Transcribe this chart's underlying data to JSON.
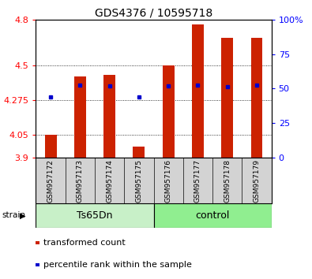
{
  "title": "GDS4376 / 10595718",
  "samples": [
    "GSM957172",
    "GSM957173",
    "GSM957174",
    "GSM957175",
    "GSM957176",
    "GSM957177",
    "GSM957178",
    "GSM957179"
  ],
  "red_values": [
    4.05,
    4.43,
    4.44,
    3.97,
    4.5,
    4.77,
    4.68,
    4.68
  ],
  "blue_values": [
    4.295,
    4.375,
    4.365,
    4.295,
    4.37,
    4.375,
    4.36,
    4.375
  ],
  "y_min": 3.9,
  "y_max": 4.8,
  "y_ticks_red": [
    3.9,
    4.05,
    4.275,
    4.5,
    4.8
  ],
  "y_ticks_blue": [
    0,
    25,
    50,
    75,
    100
  ],
  "groups": [
    {
      "label": "Ts65Dn",
      "start": 0,
      "end": 4,
      "color": "#c8f0c8"
    },
    {
      "label": "control",
      "start": 4,
      "end": 8,
      "color": "#90ee90"
    }
  ],
  "strain_label": "strain",
  "bar_color": "#cc2200",
  "blue_color": "#0000cc",
  "plot_bg": "#ffffff",
  "sample_bg": "#d3d3d3",
  "legend_red": "transformed count",
  "legend_blue": "percentile rank within the sample",
  "bar_width": 0.4,
  "title_fontsize": 10,
  "tick_fontsize": 8,
  "sample_fontsize": 6.5,
  "group_fontsize": 9,
  "legend_fontsize": 8
}
